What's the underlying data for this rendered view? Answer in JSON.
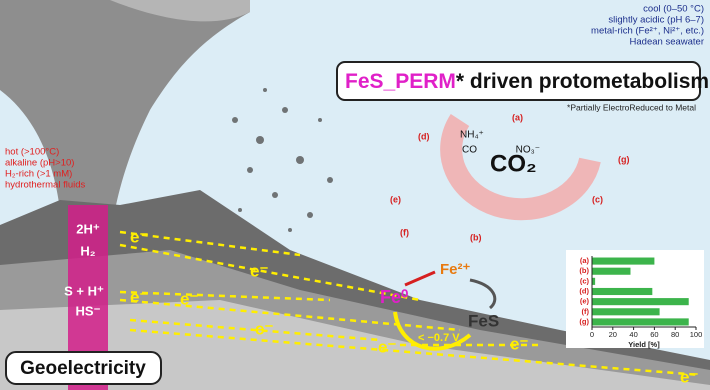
{
  "seawater": {
    "lines": [
      "cool (0–50 °C)",
      "slightly acidic (pH 6–7)",
      "metal-rich (Fe²⁺, Ni²⁺, etc.)",
      "Hadean seawater"
    ]
  },
  "fluids": {
    "lines": [
      "hot (>100°C)",
      "alkaline (pH>10)",
      "H₂-rich (>1 mM)",
      "hydrothermal fluids"
    ]
  },
  "title": {
    "highlight": "FeS_PERM",
    "rest": "* driven protometabolism",
    "footnote": "*Partially ElectroReduced to Metal"
  },
  "label": "Geoelectricity",
  "vent": {
    "top_in": "2H⁺",
    "top_out": "H₂",
    "bottom_in": "S + H⁺",
    "bottom_out": "HS⁻",
    "electron": "e⁻"
  },
  "iron": {
    "fe0": "Fe⁰",
    "fe2": "Fe²⁺",
    "fes": "FeS",
    "potential": "< −0.7 V"
  },
  "reaction": {
    "co2": "CO₂",
    "nh4": "NH₄⁺",
    "no3": "NO₃⁻",
    "co": "CO",
    "steps": [
      "(a)",
      "(b)",
      "(c)",
      "(d)",
      "(e)",
      "(f)",
      "(g)"
    ]
  },
  "chart_data": {
    "type": "bar",
    "orientation": "horizontal",
    "categories": [
      "(a)",
      "(b)",
      "(c)",
      "(d)",
      "(e)",
      "(f)",
      "(g)"
    ],
    "values": [
      60,
      37,
      3,
      58,
      93,
      65,
      93
    ],
    "color": "#3cb44b",
    "xlim": [
      0,
      100
    ],
    "xticks": [
      0,
      20,
      40,
      60,
      80,
      100
    ],
    "xlabel": "Yield [%]"
  }
}
